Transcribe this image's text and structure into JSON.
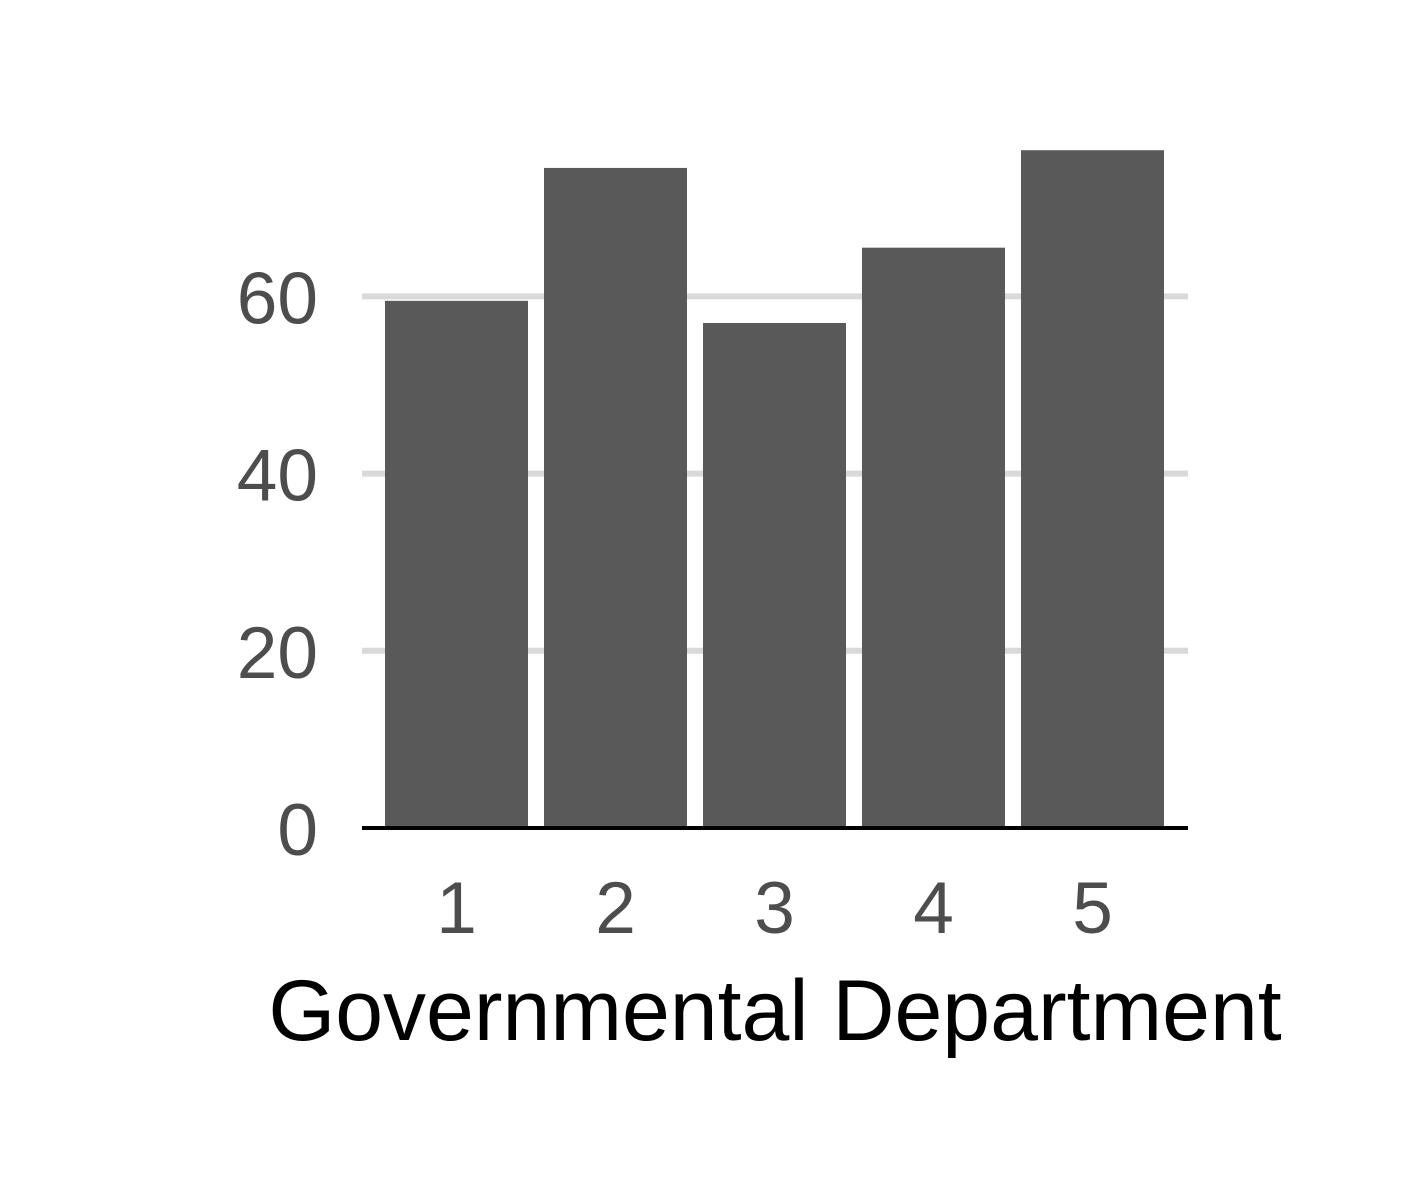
{
  "chart_data": {
    "type": "bar",
    "title": "",
    "xlabel": "Governmental Department",
    "ylabel": "",
    "categories": [
      "1",
      "2",
      "3",
      "4",
      "5"
    ],
    "values": [
      59.5,
      74.5,
      57,
      65.5,
      76.5
    ],
    "ylim": [
      0,
      76.5
    ],
    "yticks": [
      0,
      20,
      40,
      60
    ],
    "grid": "horizontal",
    "legend": "none",
    "colors": {
      "bar": "#595959",
      "grid": "#d9d9d9",
      "baseline": "#000000",
      "tick_text": "#4d4d4d",
      "axis_title_text": "#000000"
    }
  }
}
